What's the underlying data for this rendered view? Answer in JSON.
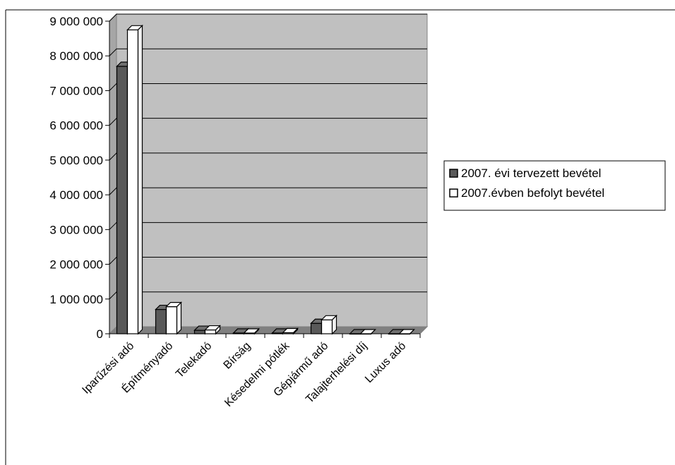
{
  "chart_data": {
    "type": "bar",
    "categories": [
      "Iparűzési adó",
      "Építményadó",
      "Telekadó",
      "Bírság",
      "Késedelmi pótlék",
      "Gépjármű adó",
      "Talajterhelési díj",
      "Luxus adó"
    ],
    "series": [
      {
        "name": "2007. évi tervezett bevétel",
        "values": [
          7700000,
          700000,
          100000,
          20000,
          20000,
          300000,
          0,
          0
        ],
        "color": "#595959"
      },
      {
        "name": "2007.évben befolyt bevétel",
        "values": [
          8750000,
          780000,
          110000,
          20000,
          30000,
          400000,
          0,
          0
        ],
        "color": "#ffffff"
      }
    ],
    "yticks": [
      "0",
      "1 000 000",
      "2 000 000",
      "3 000 000",
      "4 000 000",
      "5 000 000",
      "6 000 000",
      "7 000 000",
      "8 000 000",
      "9 000 000"
    ],
    "ylim": [
      0,
      9000000
    ],
    "grid": true,
    "legend_position": "right",
    "title": "",
    "xlabel": "",
    "ylabel": "",
    "plot_background": "#c0c0c0"
  }
}
